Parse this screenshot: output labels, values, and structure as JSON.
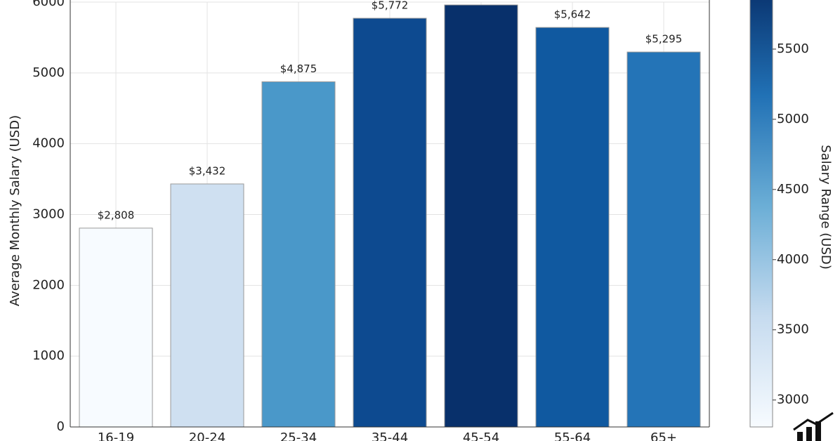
{
  "chart_data": {
    "type": "bar",
    "y_label": "Average Monthly Salary (USD)",
    "categories": [
      "16-19",
      "20-24",
      "25-34",
      "35-44",
      "45-54",
      "55-64",
      "65+"
    ],
    "values": [
      2808,
      3432,
      4875,
      5772,
      5960,
      5642,
      5295
    ],
    "value_labels": [
      "$2,808",
      "$3,432",
      "$4,875",
      "$5,772",
      null,
      "$5,642",
      "$5,295"
    ],
    "colors": [
      "#f7fbff",
      "#cfe0f1",
      "#4a98c9",
      "#0d4a90",
      "#08306b",
      "#1059a0",
      "#2474b7"
    ],
    "ylim": [
      0,
      6000
    ],
    "yticks": [
      0,
      1000,
      2000,
      3000,
      4000,
      5000,
      6000
    ],
    "grid": true,
    "colorbar": {
      "label": "Salary Range (USD)",
      "lim": [
        2808,
        5960
      ],
      "ticks": [
        3000,
        3500,
        4000,
        4500,
        5000,
        5500
      ]
    }
  }
}
